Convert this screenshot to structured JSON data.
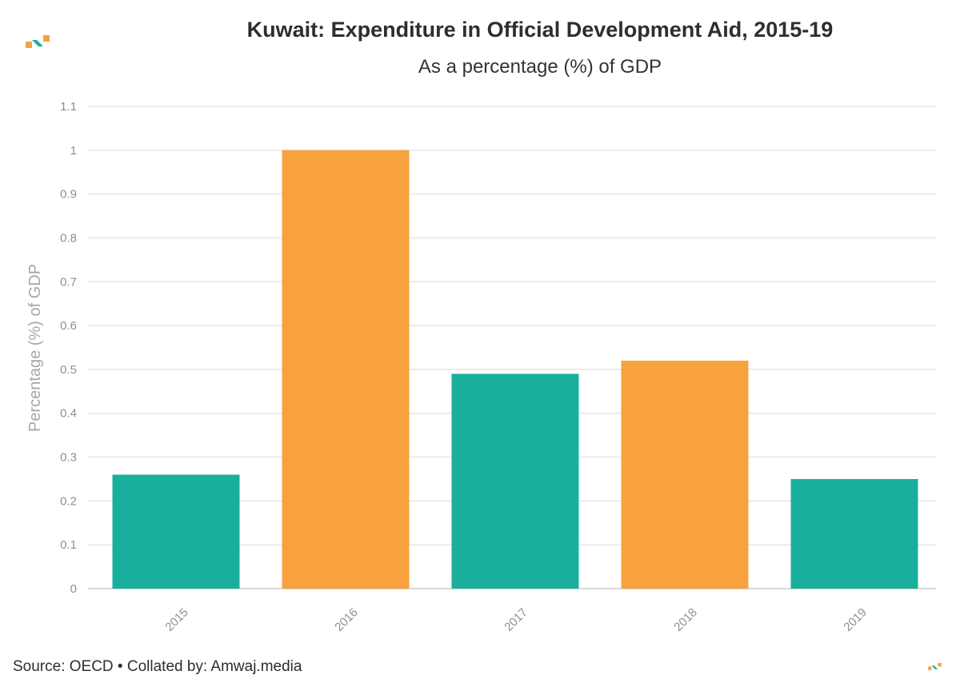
{
  "header": {
    "title": "Kuwait: Expenditure in Official Development Aid, 2015-19",
    "subtitle": "As a percentage (%) of GDP"
  },
  "footer": {
    "source": "Source: OECD • Collated by: Amwaj.media"
  },
  "logo": {
    "icon": "amwaj-logo-icon",
    "colors": [
      "#f7a23e",
      "#1aaf9d"
    ]
  },
  "chart_data": {
    "type": "bar",
    "title": "Kuwait: Expenditure in Official Development Aid, 2015-19",
    "subtitle": "As a percentage (%) of GDP",
    "xlabel": "",
    "ylabel": "Percentage (%) of GDP",
    "categories": [
      "2015",
      "2016",
      "2017",
      "2018",
      "2019"
    ],
    "values": [
      0.26,
      1.0,
      0.49,
      0.52,
      0.25
    ],
    "bar_colors": [
      "#1aaf9d",
      "#f7a23e",
      "#1aaf9d",
      "#f7a23e",
      "#1aaf9d"
    ],
    "ylim": [
      0,
      1.1
    ],
    "yticks": [
      "0",
      "0.1",
      "0.2",
      "0.3",
      "0.4",
      "0.5",
      "0.6",
      "0.7",
      "0.8",
      "0.9",
      "1",
      "1.1"
    ],
    "grid": true,
    "legend": "none"
  }
}
